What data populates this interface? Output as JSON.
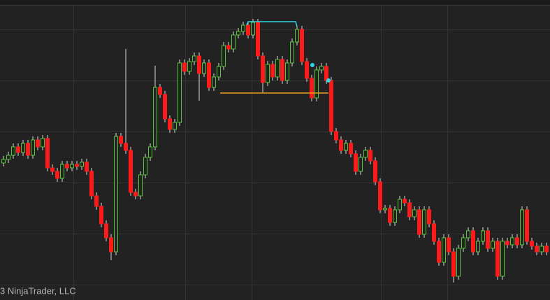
{
  "chart_data": {
    "type": "candlestick",
    "watermark": "3 NinjaTrader, LLC",
    "up_color": "#55c63a",
    "down_color": "#ff1a1a",
    "wick_color": "#d8d8d8",
    "ylim": [
      0,
      429
    ],
    "open": [
      196,
      201,
      207,
      219,
      211,
      224,
      207,
      229,
      219,
      231,
      189,
      184,
      174,
      194,
      189,
      194,
      191,
      197,
      184,
      149,
      134,
      109,
      89,
      69,
      234,
      224,
      214,
      154,
      149,
      179,
      204,
      219,
      304,
      294,
      259,
      244,
      254,
      339,
      327,
      341,
      349,
      324,
      339,
      304,
      319,
      334,
      364,
      359,
      379,
      384,
      393,
      379,
      397,
      349,
      311,
      337,
      319,
      344,
      314,
      339,
      369,
      387,
      341,
      317,
      289,
      329,
      334,
      314,
      241,
      229,
      214,
      224,
      209,
      184,
      204,
      214,
      199,
      169,
      129,
      131,
      111,
      129,
      144,
      139,
      119,
      129,
      94,
      129,
      109,
      84,
      54,
      89,
      69,
      34,
      74,
      89,
      99,
      69,
      84,
      99,
      74,
      84,
      34,
      84,
      79,
      89,
      79,
      129,
      84,
      77,
      69,
      77
    ],
    "high": [
      206,
      212,
      224,
      224,
      229,
      229,
      234,
      234,
      236,
      236,
      194,
      189,
      199,
      199,
      199,
      199,
      202,
      202,
      189,
      154,
      139,
      114,
      94,
      239,
      239,
      359,
      219,
      159,
      184,
      209,
      224,
      335,
      309,
      299,
      264,
      259,
      344,
      344,
      346,
      354,
      354,
      344,
      344,
      324,
      339,
      369,
      369,
      384,
      389,
      398,
      398,
      402,
      402,
      354,
      342,
      342,
      349,
      349,
      344,
      374,
      392,
      392,
      346,
      322,
      334,
      339,
      339,
      319,
      246,
      234,
      229,
      229,
      214,
      209,
      219,
      219,
      204,
      174,
      136,
      136,
      134,
      149,
      149,
      144,
      134,
      134,
      134,
      134,
      114,
      89,
      94,
      94,
      74,
      79,
      94,
      104,
      104,
      89,
      104,
      104,
      89,
      89,
      89,
      89,
      94,
      94,
      134,
      134,
      89,
      82,
      82,
      82
    ],
    "low": [
      191,
      196,
      202,
      206,
      206,
      202,
      202,
      214,
      214,
      184,
      179,
      169,
      169,
      184,
      184,
      186,
      186,
      179,
      144,
      129,
      104,
      84,
      57,
      64,
      219,
      209,
      149,
      144,
      144,
      174,
      199,
      214,
      289,
      254,
      239,
      239,
      249,
      322,
      322,
      336,
      285,
      319,
      299,
      299,
      314,
      329,
      354,
      354,
      374,
      379,
      374,
      374,
      344,
      297,
      306,
      314,
      314,
      309,
      309,
      334,
      364,
      336,
      312,
      284,
      284,
      324,
      309,
      236,
      224,
      209,
      209,
      204,
      179,
      179,
      199,
      194,
      164,
      124,
      124,
      106,
      106,
      124,
      134,
      114,
      114,
      89,
      89,
      104,
      79,
      49,
      49,
      64,
      25,
      29,
      69,
      84,
      64,
      64,
      79,
      69,
      69,
      29,
      29,
      74,
      74,
      74,
      74,
      79,
      72,
      64,
      64,
      64
    ],
    "close": [
      201,
      207,
      219,
      211,
      224,
      207,
      229,
      219,
      231,
      189,
      184,
      174,
      194,
      189,
      194,
      191,
      197,
      184,
      149,
      134,
      109,
      89,
      69,
      234,
      224,
      214,
      154,
      149,
      179,
      204,
      219,
      304,
      294,
      259,
      244,
      254,
      339,
      327,
      341,
      349,
      324,
      339,
      304,
      319,
      334,
      364,
      359,
      379,
      384,
      393,
      379,
      397,
      349,
      311,
      337,
      319,
      344,
      314,
      339,
      369,
      387,
      341,
      317,
      289,
      329,
      334,
      314,
      241,
      229,
      214,
      224,
      209,
      184,
      204,
      214,
      199,
      169,
      129,
      131,
      111,
      129,
      144,
      139,
      119,
      129,
      94,
      129,
      109,
      84,
      54,
      89,
      69,
      34,
      74,
      89,
      99,
      69,
      84,
      99,
      74,
      84,
      34,
      84,
      79,
      89,
      79,
      129,
      84,
      77,
      69,
      77,
      69
    ]
  }
}
